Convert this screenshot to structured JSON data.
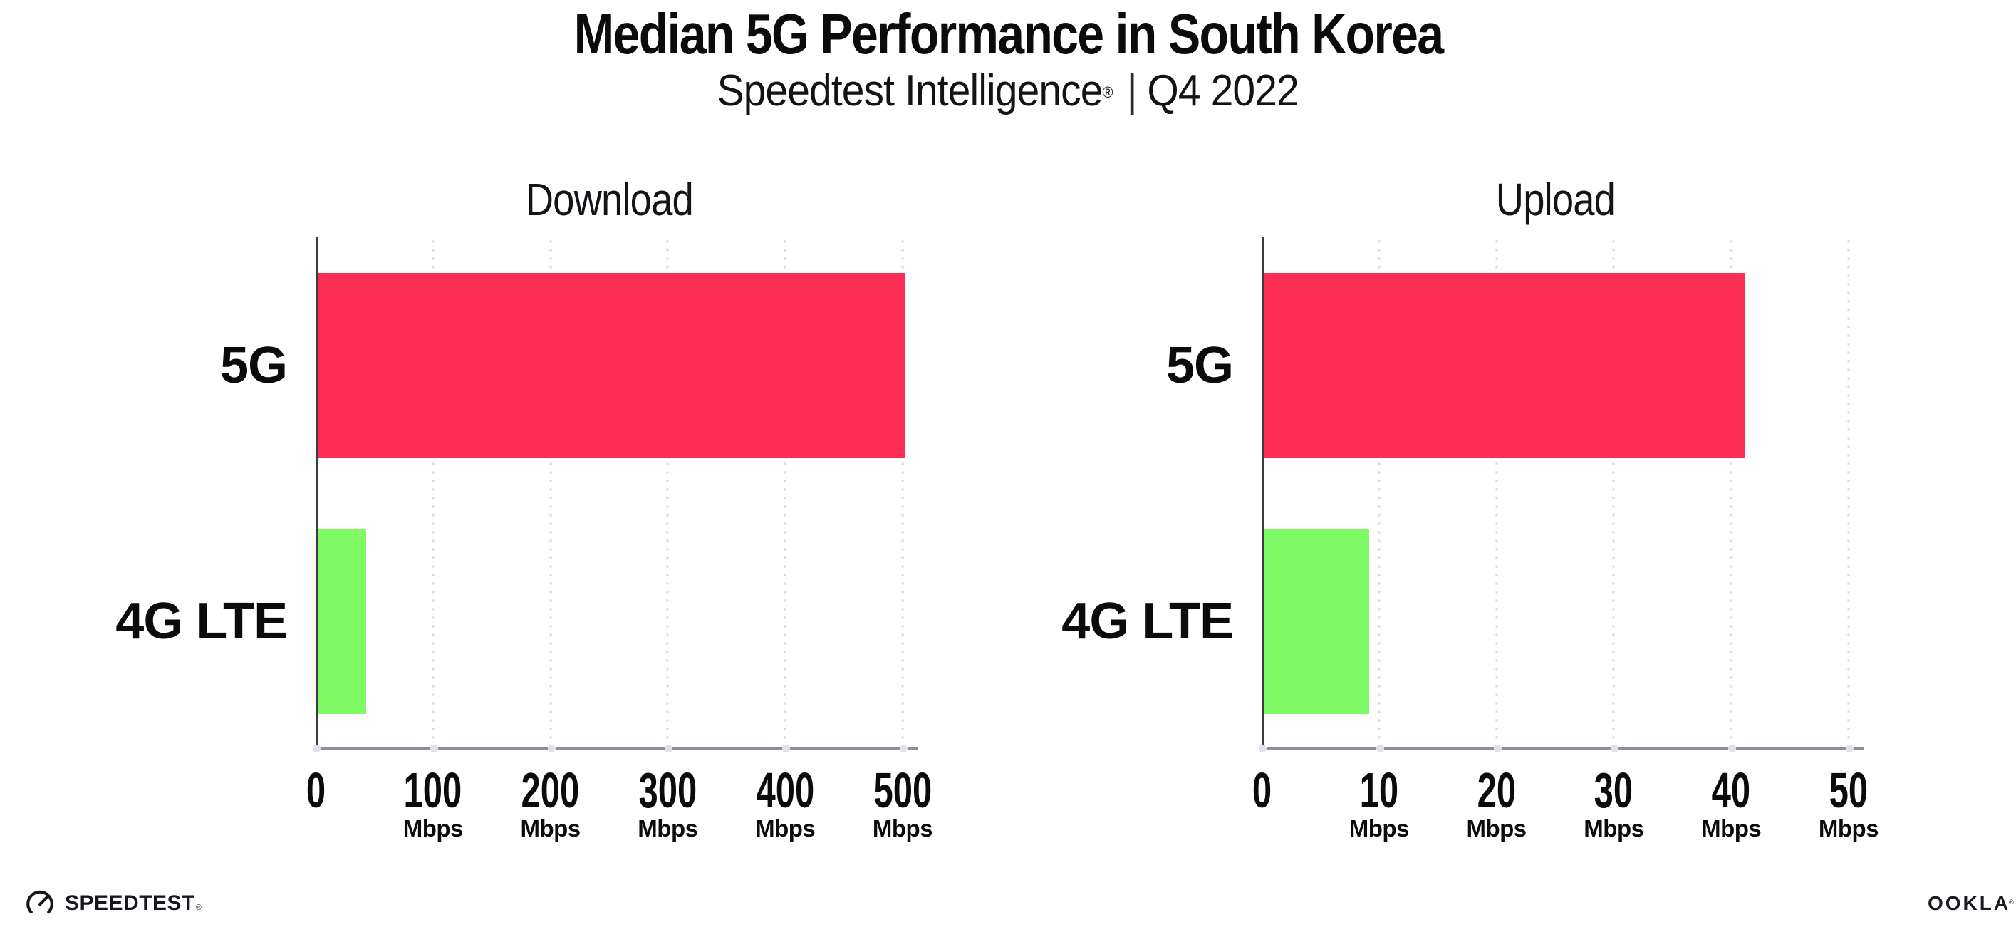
{
  "header": {
    "title": "Median 5G Performance in South Korea",
    "subtitle_brand": "Speedtest Intelligence",
    "subtitle_regmark": "®",
    "subtitle_separator": "|",
    "subtitle_period": "Q4 2022"
  },
  "colors": {
    "bar_5g": "#FD2D55",
    "bar_4g_lte": "#80FA64",
    "axis_vertical": "#3c3c45",
    "axis_horizontal": "#8f8f99",
    "gridline_dots": "#dcd9e6",
    "text": "#0b0b0d"
  },
  "chart_data": [
    {
      "type": "bar",
      "orientation": "horizontal",
      "title": "Download",
      "categories": [
        "5G",
        "4G LTE"
      ],
      "values": [
        500,
        41
      ],
      "unit": "Mbps",
      "xlim": [
        0,
        500
      ],
      "xticks": [
        0,
        100,
        200,
        300,
        400,
        500
      ],
      "tick_unit": "Mbps",
      "grid": "vertical-dotted",
      "legend": "none",
      "colors": [
        "#FD2D55",
        "#80FA64"
      ]
    },
    {
      "type": "bar",
      "orientation": "horizontal",
      "title": "Upload",
      "categories": [
        "5G",
        "4G LTE"
      ],
      "values": [
        41,
        9
      ],
      "unit": "Mbps",
      "xlim": [
        0,
        50
      ],
      "xticks": [
        0,
        10,
        20,
        30,
        40,
        50
      ],
      "tick_unit": "Mbps",
      "grid": "vertical-dotted",
      "legend": "none",
      "colors": [
        "#FD2D55",
        "#80FA64"
      ]
    }
  ],
  "footer": {
    "speedtest_text": "SPEEDTEST",
    "speedtest_mark": "®",
    "ookla_text": "OOKLA",
    "ookla_mark": "®"
  }
}
